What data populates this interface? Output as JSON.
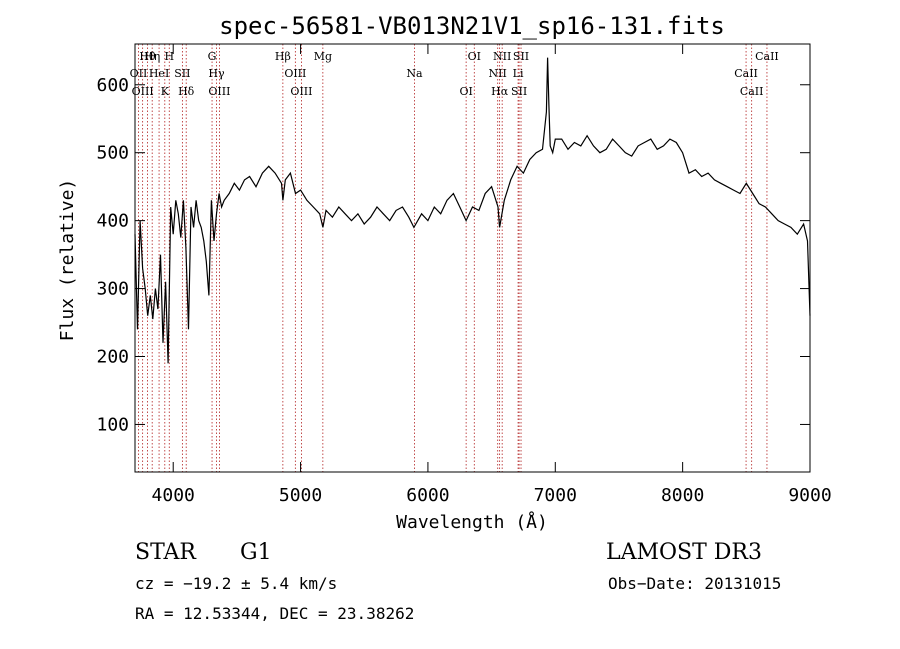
{
  "chart_data": {
    "type": "line",
    "title": "spec-56581-VB013N21V1_sp16-131.fits",
    "xlabel": "Wavelength (Å)",
    "ylabel": "Flux (relative)",
    "xlim": [
      3700,
      9000
    ],
    "ylim": [
      30,
      660
    ],
    "xticks": [
      4000,
      5000,
      6000,
      7000,
      8000,
      9000
    ],
    "xtick_labels": [
      "4000",
      "5000",
      "6000",
      "7000",
      "8000",
      "9000"
    ],
    "yticks": [
      100,
      200,
      300,
      400,
      500,
      600
    ],
    "ytick_labels": [
      "100",
      "200",
      "300",
      "400",
      "500",
      "600"
    ],
    "series": [
      {
        "name": "flux",
        "x": [
          3700,
          3720,
          3740,
          3760,
          3780,
          3800,
          3820,
          3840,
          3860,
          3880,
          3900,
          3920,
          3940,
          3960,
          3980,
          4000,
          4020,
          4040,
          4060,
          4080,
          4100,
          4120,
          4140,
          4160,
          4180,
          4200,
          4220,
          4240,
          4260,
          4280,
          4300,
          4320,
          4340,
          4360,
          4380,
          4400,
          4440,
          4480,
          4520,
          4560,
          4600,
          4650,
          4700,
          4750,
          4800,
          4850,
          4861,
          4880,
          4920,
          4960,
          5000,
          5050,
          5100,
          5150,
          5175,
          5200,
          5250,
          5300,
          5350,
          5400,
          5450,
          5500,
          5550,
          5600,
          5650,
          5700,
          5750,
          5800,
          5850,
          5890,
          5950,
          6000,
          6050,
          6100,
          6150,
          6200,
          6250,
          6300,
          6350,
          6400,
          6450,
          6500,
          6550,
          6563,
          6600,
          6650,
          6700,
          6750,
          6800,
          6850,
          6900,
          6930,
          6940,
          6950,
          6960,
          6980,
          7000,
          7050,
          7100,
          7150,
          7200,
          7250,
          7300,
          7350,
          7400,
          7450,
          7500,
          7550,
          7600,
          7650,
          7700,
          7750,
          7800,
          7850,
          7900,
          7950,
          8000,
          8050,
          8100,
          8150,
          8200,
          8250,
          8300,
          8350,
          8400,
          8450,
          8500,
          8550,
          8600,
          8650,
          8700,
          8750,
          8800,
          8850,
          8900,
          8950,
          8980,
          9000
        ],
        "y": [
          380,
          240,
          400,
          330,
          300,
          260,
          290,
          255,
          300,
          270,
          350,
          220,
          310,
          190,
          420,
          380,
          430,
          410,
          375,
          430,
          360,
          240,
          420,
          390,
          430,
          400,
          390,
          370,
          340,
          290,
          430,
          370,
          410,
          440,
          420,
          430,
          440,
          455,
          445,
          460,
          465,
          450,
          470,
          480,
          470,
          455,
          430,
          460,
          470,
          440,
          445,
          430,
          420,
          410,
          390,
          415,
          405,
          420,
          410,
          400,
          410,
          395,
          405,
          420,
          410,
          400,
          415,
          420,
          405,
          390,
          410,
          400,
          420,
          410,
          430,
          440,
          420,
          400,
          420,
          415,
          440,
          450,
          420,
          390,
          430,
          460,
          480,
          470,
          490,
          500,
          505,
          560,
          640,
          570,
          510,
          500,
          520,
          520,
          505,
          515,
          510,
          525,
          510,
          500,
          505,
          520,
          510,
          500,
          495,
          510,
          515,
          520,
          505,
          510,
          520,
          515,
          500,
          470,
          475,
          465,
          470,
          460,
          455,
          450,
          445,
          440,
          455,
          440,
          425,
          420,
          410,
          400,
          395,
          390,
          380,
          395,
          370,
          260
        ]
      }
    ],
    "lines": [
      {
        "name": "Hθ",
        "x": 3798
      },
      {
        "name": "OII",
        "x": 3727
      },
      {
        "name": "OIII",
        "x": 3760
      },
      {
        "name": "Hη",
        "x": 3835
      },
      {
        "name": "HeI",
        "x": 3889
      },
      {
        "name": "K",
        "x": 3934
      },
      {
        "name": "H",
        "x": 3969
      },
      {
        "name": "SII",
        "x": 4072
      },
      {
        "name": "Hδ",
        "x": 4102
      },
      {
        "name": "G",
        "x": 4305
      },
      {
        "name": "Hγ",
        "x": 4340
      },
      {
        "name": "OIII",
        "x": 4363
      },
      {
        "name": "Hβ",
        "x": 4861
      },
      {
        "name": "OIII",
        "x": 4959
      },
      {
        "name": "OIII",
        "x": 5007
      },
      {
        "name": "Mg",
        "x": 5175
      },
      {
        "name": "Na",
        "x": 5894
      },
      {
        "name": "OI",
        "x": 6300
      },
      {
        "name": "OI",
        "x": 6364
      },
      {
        "name": "NII",
        "x": 6548
      },
      {
        "name": "Hα",
        "x": 6563
      },
      {
        "name": "NII",
        "x": 6583
      },
      {
        "name": "Li",
        "x": 6708
      },
      {
        "name": "SII",
        "x": 6716
      },
      {
        "name": "SII",
        "x": 6731
      },
      {
        "name": "CaII",
        "x": 8498
      },
      {
        "name": "CaII",
        "x": 8542
      },
      {
        "name": "CaII",
        "x": 8662
      }
    ]
  },
  "info": {
    "object_class": "STAR",
    "subclass": "G1",
    "survey": "LAMOST DR3",
    "cz": "cz = −19.2 ± 5.4 km/s",
    "obs_date": "Obs−Date: 20131015",
    "coords": "RA =  12.53344, DEC =  23.38262"
  },
  "colors": {
    "spectrum": "#000000",
    "line_marker": "#b22222"
  }
}
